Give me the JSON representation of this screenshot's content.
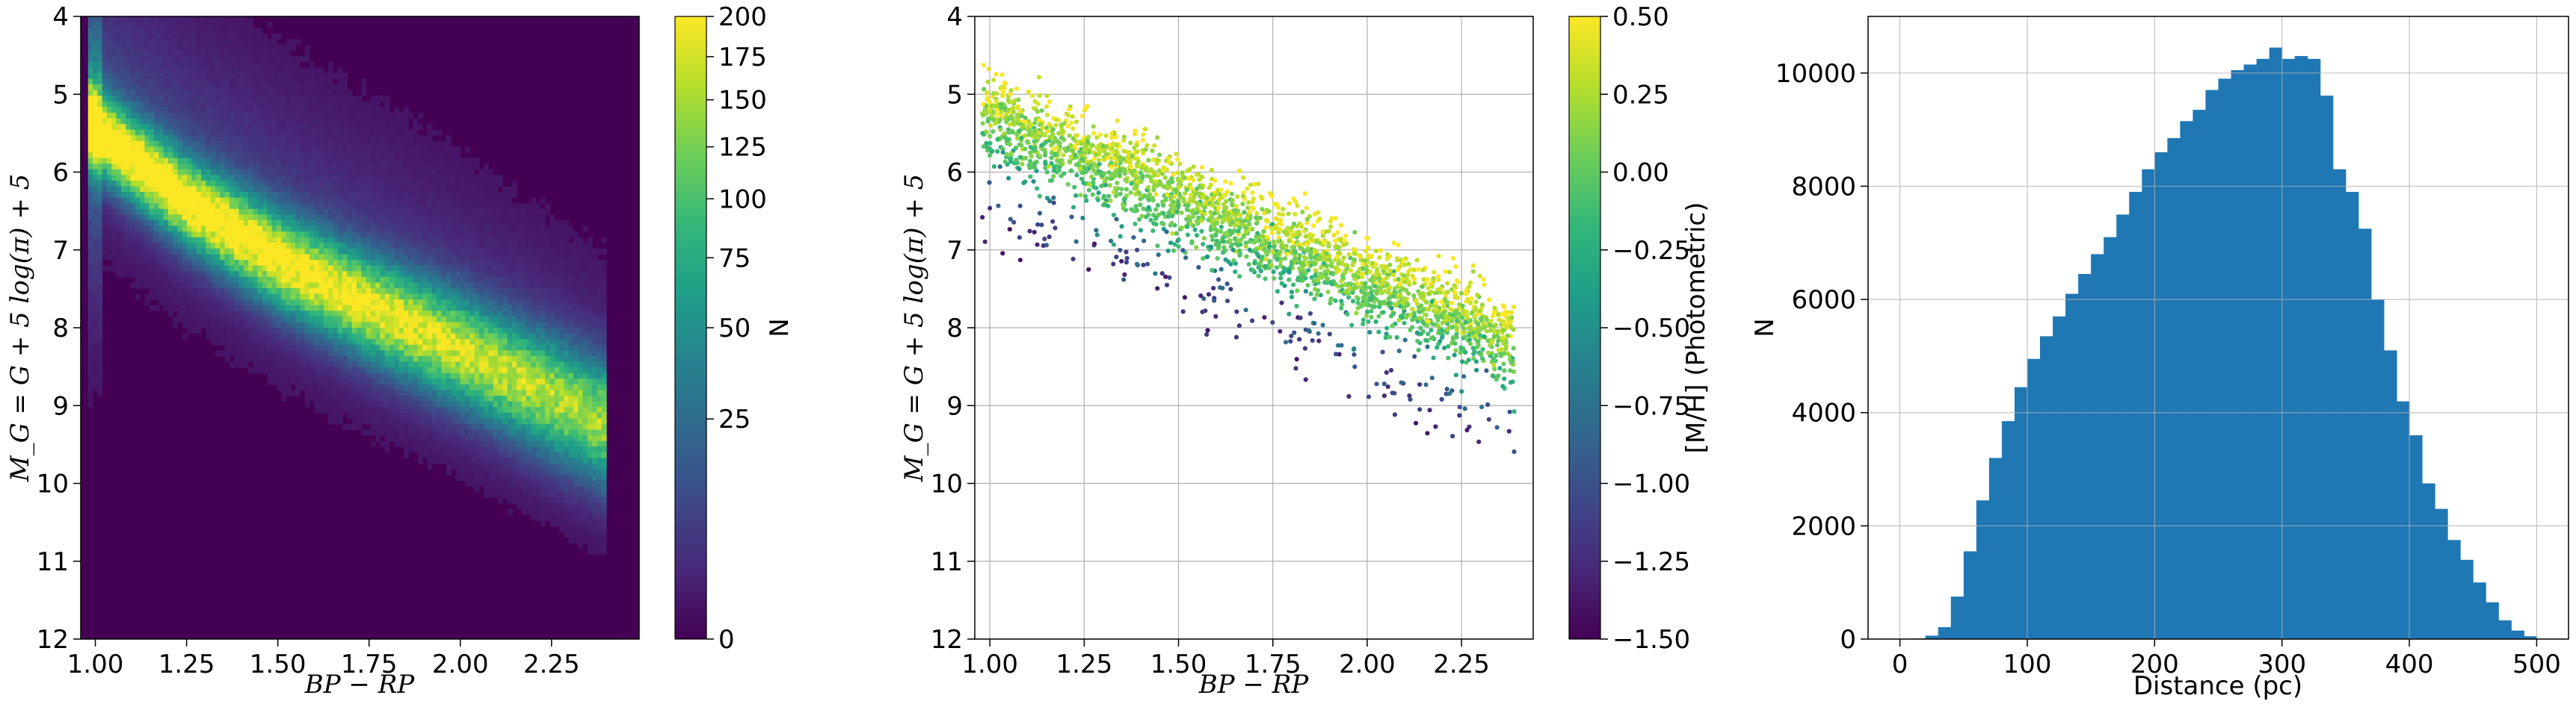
{
  "chart_data": [
    {
      "type": "heatmap",
      "xlabel": "BP − RP",
      "ylabel": "M_G = G + 5 log(π) + 5",
      "xlim": [
        0.96,
        2.49
      ],
      "ylim": [
        12,
        4
      ],
      "xticks": [
        "1.00",
        "1.25",
        "1.50",
        "1.75",
        "2.00",
        "2.25"
      ],
      "yticks": [
        "4",
        "5",
        "6",
        "7",
        "8",
        "9",
        "10",
        "11",
        "12"
      ],
      "colormap": "viridis",
      "colorbar": {
        "label": "N",
        "scale": "sqrt",
        "range": [
          0,
          200
        ],
        "ticks": [
          "0",
          "25",
          "50",
          "75",
          "100",
          "125",
          "150",
          "175",
          "200"
        ]
      },
      "main_sequence_ridge": {
        "x": [
          0.98,
          1.25,
          1.5,
          1.75,
          2.0,
          2.25,
          2.4
        ],
        "y": [
          5.4,
          6.4,
          7.15,
          7.75,
          8.3,
          8.9,
          9.25
        ]
      },
      "grid": false
    },
    {
      "type": "scatter",
      "xlabel": "BP − RP",
      "ylabel": "M_G = G + 5 log(π) + 5",
      "xlim": [
        0.96,
        2.44
      ],
      "ylim": [
        12,
        4
      ],
      "xticks": [
        "1.00",
        "1.25",
        "1.50",
        "1.75",
        "2.00",
        "2.25"
      ],
      "yticks": [
        "4",
        "5",
        "6",
        "7",
        "8",
        "9",
        "10",
        "11",
        "12"
      ],
      "colormap": "viridis",
      "color_variable": "[M/H] (Photometric)",
      "colorbar": {
        "label": "[M/H] (Photometric)",
        "range": [
          -1.5,
          0.5
        ],
        "ticks": [
          "−1.50",
          "−1.25",
          "−1.00",
          "−0.75",
          "−0.50",
          "−0.25",
          "0.00",
          "0.25",
          "0.50"
        ]
      },
      "grid": true
    },
    {
      "type": "bar",
      "subtype": "histogram",
      "xlabel": "Distance (pc)",
      "ylabel": "N",
      "xlim": [
        -25,
        525
      ],
      "ylim": [
        0,
        11000
      ],
      "xticks": [
        "0",
        "100",
        "200",
        "300",
        "400",
        "500"
      ],
      "yticks": [
        "0",
        "2000",
        "4000",
        "6000",
        "8000",
        "10000"
      ],
      "bin_width": 10,
      "bin_start": 0,
      "values": [
        0,
        10,
        60,
        210,
        750,
        1550,
        2450,
        3200,
        3850,
        4450,
        4950,
        5350,
        5700,
        6100,
        6450,
        6800,
        7100,
        7500,
        7900,
        8300,
        8600,
        8850,
        9150,
        9350,
        9700,
        9900,
        10050,
        10150,
        10250,
        10450,
        10250,
        10300,
        10250,
        9600,
        8300,
        7900,
        7250,
        6000,
        5100,
        4200,
        3600,
        2750,
        2300,
        1750,
        1400,
        1000,
        650,
        330,
        150,
        50
      ],
      "bar_color": "#1f77b4",
      "grid": true
    }
  ]
}
